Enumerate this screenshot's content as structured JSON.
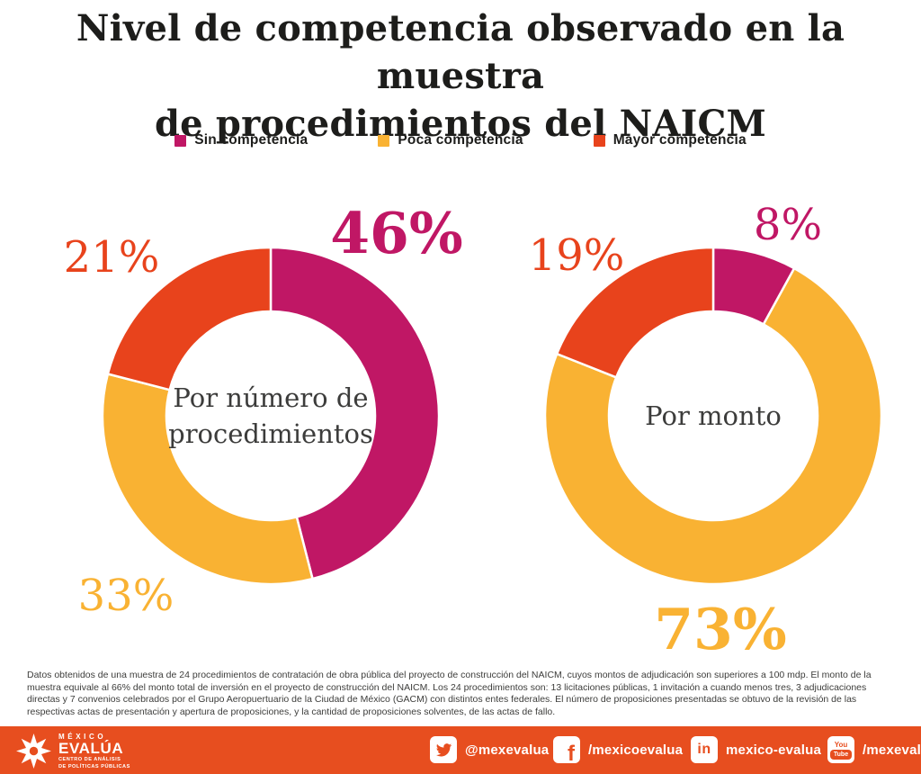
{
  "title": {
    "line1": "Nivel de competencia observado en la muestra",
    "line2": "de procedimientos del NAICM"
  },
  "legend": {
    "items": [
      {
        "label": "Sin competencia",
        "color": "#c01765"
      },
      {
        "label": "Poca competencia",
        "color": "#f9b233"
      },
      {
        "label": "Mayor competencia",
        "color": "#e8431c"
      }
    ]
  },
  "chart_data": [
    {
      "type": "pie",
      "variant": "donut",
      "title": "Por número de procedimientos",
      "center_label_lines": [
        "Por número de",
        "procedimientos"
      ],
      "labels": [
        "Sin competencia",
        "Poca competencia",
        "Mayor competencia"
      ],
      "values": [
        46,
        33,
        21
      ],
      "value_labels": [
        "46%",
        "33%",
        "21%"
      ],
      "colors": [
        "#c01765",
        "#f9b233",
        "#e8431c"
      ],
      "start_angle_deg": 0,
      "direction": "clockwise",
      "legend_position": "top"
    },
    {
      "type": "pie",
      "variant": "donut",
      "title": "Por monto",
      "center_label_lines": [
        "Por monto"
      ],
      "labels": [
        "Sin competencia",
        "Poca competencia",
        "Mayor competencia"
      ],
      "values": [
        8,
        73,
        19
      ],
      "value_labels": [
        "8%",
        "73%",
        "19%"
      ],
      "colors": [
        "#c01765",
        "#f9b233",
        "#e8431c"
      ],
      "start_angle_deg": 0,
      "direction": "clockwise",
      "legend_position": "top"
    }
  ],
  "footnote": "Datos obtenidos de una muestra de 24 procedimientos de contratación de obra pública del proyecto de construcción del NAICM, cuyos montos de adjudicación son superiores a 100 mdp. El monto de la muestra equivale al 66% del monto total de inversión en el proyecto de construcción del NAICM. Los 24 procedimientos son: 13 licitaciones públicas, 1 invitación a cuando menos tres, 3 adjudicaciones directas y 7 convenios celebrados por el Grupo Aeropuertuario de la Ciudad de México (GACM) con distintos entes federales. El número de proposiciones presentadas se obtuvo de la revisión de las respectivas actas de presentación y apertura de proposiciones, y la cantidad de proposiciones solventes, de las actas de fallo.",
  "footer": {
    "logo": {
      "line1": "MÉXICO",
      "line2": "EVALÚA",
      "line3": "CENTRO DE ANÁLISIS",
      "line4": "DE POLÍTICAS PÚBLICAS"
    },
    "social": [
      {
        "network": "twitter",
        "handle": "@mexevalua"
      },
      {
        "network": "facebook",
        "handle": "/mexicoevalua"
      },
      {
        "network": "linkedin",
        "handle": "mexico-evalua"
      },
      {
        "network": "youtube",
        "handle": "/mexeval"
      }
    ],
    "facebook_icon_text": "f",
    "linkedin_icon_text": "in",
    "youtube_icon_text_top": "You",
    "youtube_icon_text_bottom": "Tube"
  },
  "colors": {
    "magenta": "#c01765",
    "yellow": "#f9b233",
    "orange": "#e8431c",
    "footer_bar": "#e74e1f",
    "title_text": "#1d1d1b",
    "body_text": "#3d3d3b"
  }
}
